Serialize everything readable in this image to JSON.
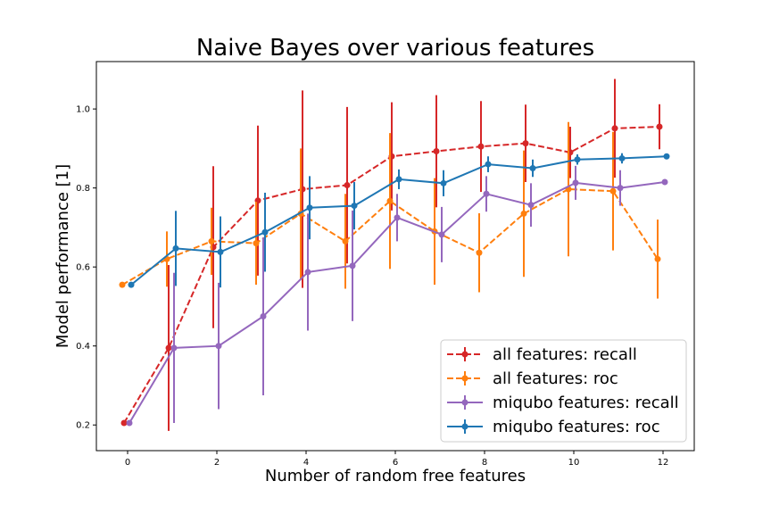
{
  "chart_data": {
    "type": "line",
    "title": "Naive Bayes over various features",
    "xlabel": "Number of random free features",
    "ylabel": "Model performance [1]",
    "xlim": [
      -0.7,
      12.7
    ],
    "ylim": [
      0.135,
      1.12
    ],
    "xticks": [
      0,
      2,
      4,
      6,
      8,
      10,
      12
    ],
    "yticks": [
      0.2,
      0.4,
      0.6,
      0.8,
      1.0
    ],
    "ytick_labels": [
      "0.2",
      "0.4",
      "0.6",
      "0.8",
      "1.0"
    ],
    "grid": false,
    "legend_position": "lower-right",
    "series": [
      {
        "name": "all features: recall",
        "color": "#d62728",
        "linestyle": "dashed",
        "x": [
          -0.08,
          0.92,
          1.92,
          2.92,
          3.92,
          4.92,
          5.92,
          6.92,
          7.92,
          8.92,
          9.92,
          10.92,
          11.92
        ],
        "y": [
          0.205,
          0.395,
          0.65,
          0.768,
          0.797,
          0.807,
          0.88,
          0.893,
          0.905,
          0.913,
          0.89,
          0.951,
          0.955
        ],
        "err": [
          0.0,
          0.21,
          0.205,
          0.19,
          0.25,
          0.198,
          0.137,
          0.142,
          0.115,
          0.098,
          0.065,
          0.125,
          0.057
        ]
      },
      {
        "name": "all features: roc",
        "color": "#ff7f0e",
        "linestyle": "dashed",
        "x": [
          -0.12,
          0.88,
          1.88,
          2.88,
          3.88,
          4.88,
          5.88,
          6.88,
          7.88,
          8.88,
          9.88,
          10.88,
          11.88
        ],
        "y": [
          0.555,
          0.62,
          0.665,
          0.66,
          0.735,
          0.665,
          0.767,
          0.69,
          0.636,
          0.735,
          0.797,
          0.792,
          0.62
        ],
        "err": [
          0.0,
          0.07,
          0.085,
          0.105,
          0.165,
          0.12,
          0.172,
          0.135,
          0.1,
          0.16,
          0.17,
          0.15,
          0.1
        ]
      },
      {
        "name": "miqubo features: recall",
        "color": "#9467bd",
        "linestyle": "solid",
        "x": [
          0.04,
          1.04,
          2.04,
          3.04,
          4.04,
          5.04,
          6.04,
          7.04,
          8.04,
          9.04,
          10.04,
          11.04,
          12.04
        ],
        "y": [
          0.205,
          0.395,
          0.4,
          0.475,
          0.587,
          0.603,
          0.725,
          0.682,
          0.785,
          0.757,
          0.813,
          0.8,
          0.815
        ],
        "err": [
          0.0,
          0.19,
          0.16,
          0.2,
          0.148,
          0.14,
          0.06,
          0.07,
          0.045,
          0.055,
          0.043,
          0.045,
          0.0
        ]
      },
      {
        "name": "miqubo features: roc",
        "color": "#1f77b4",
        "linestyle": "solid",
        "x": [
          0.08,
          1.08,
          2.08,
          3.08,
          4.08,
          5.08,
          6.08,
          7.08,
          8.08,
          9.08,
          10.08,
          11.08,
          12.08
        ],
        "y": [
          0.555,
          0.647,
          0.638,
          0.688,
          0.75,
          0.755,
          0.822,
          0.812,
          0.86,
          0.85,
          0.872,
          0.875,
          0.88
        ],
        "err": [
          0.0,
          0.095,
          0.09,
          0.1,
          0.08,
          0.06,
          0.025,
          0.033,
          0.02,
          0.022,
          0.013,
          0.013,
          0.0
        ]
      }
    ]
  }
}
